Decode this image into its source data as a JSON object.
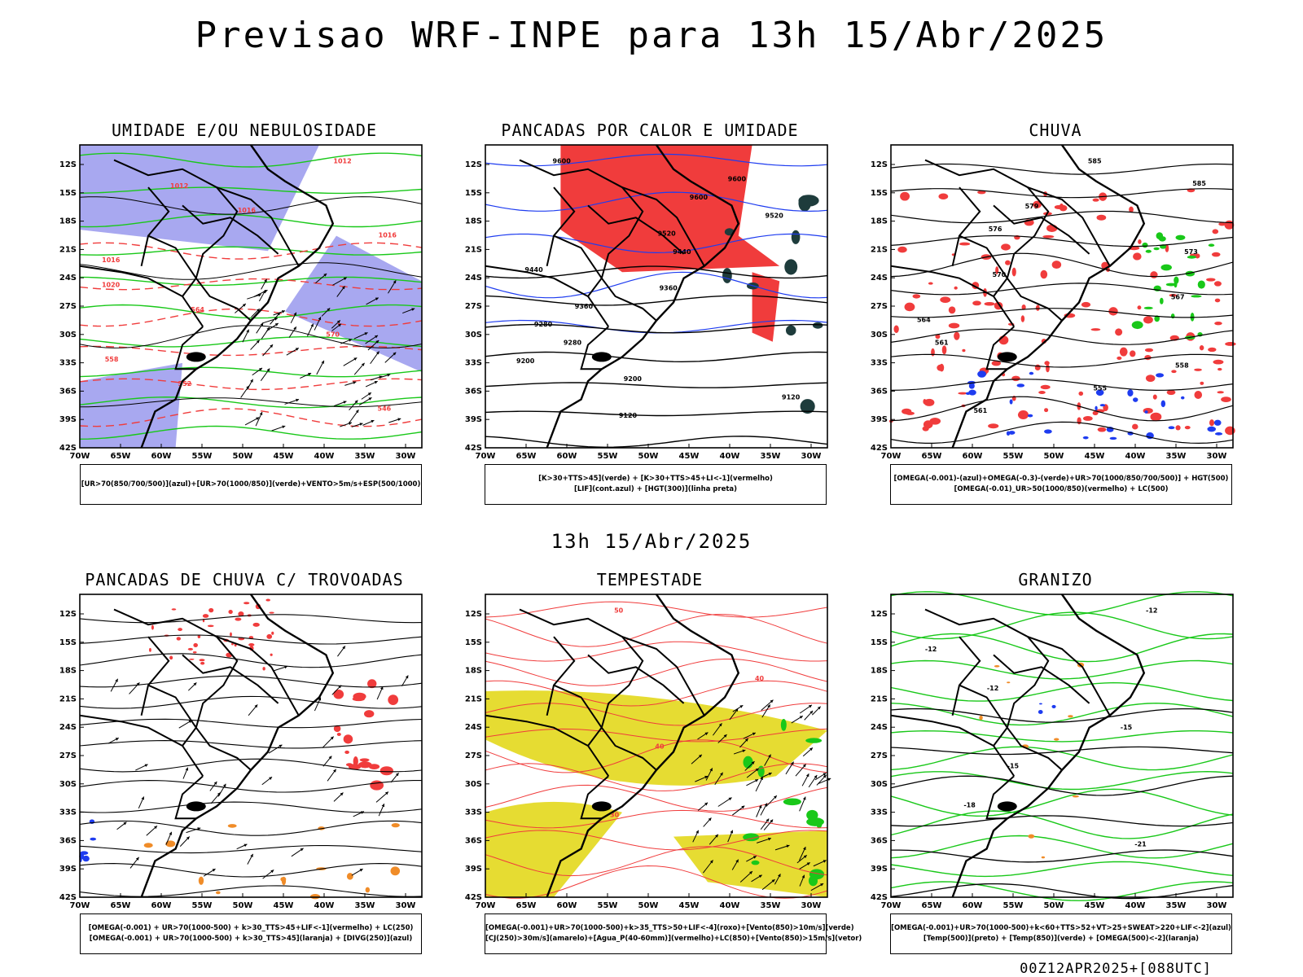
{
  "header": {
    "title": "Previsao WRF-INPE  para 13h 15/Abr/2025"
  },
  "middle": {
    "label": "13h 15/Abr/2025"
  },
  "footer": {
    "run_label": "00Z12APR2025+[088UTC]"
  },
  "axes": {
    "lat_ticks": [
      "12S",
      "15S",
      "18S",
      "21S",
      "24S",
      "27S",
      "30S",
      "33S",
      "36S",
      "39S",
      "42S"
    ],
    "lon_ticks": [
      "70W",
      "65W",
      "60W",
      "55W",
      "50W",
      "45W",
      "40W",
      "35W",
      "30W"
    ]
  },
  "panels": [
    {
      "id": "umidade",
      "title": "UMIDADE E/OU NEBULOSIDADE",
      "legend": [
        "[UR>70(850/700/500)](azul)+[UR>70(1000/850)](verde)+VENTO>5m/s+ESP(500/1000)"
      ],
      "contour_labels": [
        "1012",
        "1012",
        "1016",
        "1016",
        "1016",
        "1020",
        "564",
        "570",
        "558",
        "552",
        "546"
      ]
    },
    {
      "id": "pancadas_calor",
      "title": "PANCADAS POR CALOR E UMIDADE",
      "legend": [
        "[K>30+TTS>45](verde) + [K>30+TTS>45+LI<-1](vermelho)",
        "[LIF](cont.azul) + [HGT(300)](linha preta)"
      ],
      "contour_labels": [
        "9600",
        "9600",
        "9600",
        "9520",
        "9520",
        "9440",
        "9440",
        "9360",
        "9360",
        "9280",
        "9280",
        "9200",
        "9200",
        "9120",
        "9120"
      ]
    },
    {
      "id": "chuva",
      "title": "CHUVA",
      "legend": [
        "[OMEGA(-0.001)-(azul)+OMEGA(-0.3)-(verde)+UR>70(1000/850/700/500)] + HGT(500)",
        "[OMEGA(-0.01)_UR>50(1000/850)(vermelho) + LC(500)"
      ],
      "contour_labels": [
        "585",
        "585",
        "579",
        "576",
        "573",
        "570",
        "567",
        "564",
        "561",
        "558",
        "555",
        "561"
      ]
    },
    {
      "id": "trovoadas",
      "title": "PANCADAS DE CHUVA C/ TROVOADAS",
      "legend": [
        "[OMEGA(-0.001) + UR>70(1000-500) + k>30_TTS>45+LIF<-1](vermelho) + LC(250)",
        "[OMEGA(-0.001) + UR>70(1000-500) + k>30_TTS>45](laranja) + [DIVG(250)](azul)"
      ],
      "contour_labels": []
    },
    {
      "id": "tempestade",
      "title": "TEMPESTADE",
      "legend": [
        "[OMEGA(-0.001)+UR>70(1000-500)+k>35_TTS>50+LIF<-4](roxo)+[Vento(850)>10m/s](verde)",
        "[CJ(250)>30m/s](amarelo)+[Agua_P(40-60mm)](vermelho)+LC(850)+[Vento(850)>15m/s](vetor)"
      ],
      "contour_labels": [
        "50",
        "40",
        "40",
        "30"
      ]
    },
    {
      "id": "granizo",
      "title": "GRANIZO",
      "legend": [
        "[OMEGA(-0.001)+UR>70(1000-500)+k<60+TTS>52+VT>25+SWEAT>220+LIF<-2](azul)",
        "[Temp(500)](preto) + [Temp(850)](verde) + [OMEGA(500)<-2](laranja)"
      ],
      "contour_labels": [
        "-12",
        "-12",
        "-12",
        "-15",
        "-15",
        "-18",
        "-21"
      ]
    }
  ],
  "colors": {
    "blue_fill": "#a8a8f0",
    "green": "#19c819",
    "red": "#f03c3c",
    "dark": "#1e3c3c",
    "yellow": "#e6dc32",
    "orange": "#f08c28",
    "blue": "#1e3cf0"
  }
}
